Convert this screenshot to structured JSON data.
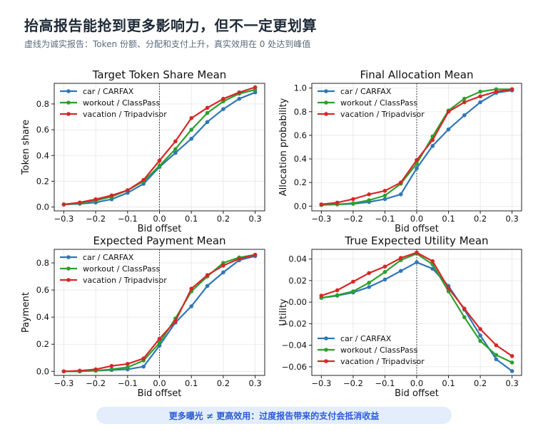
{
  "header": {
    "title": "抬高报告能抢到更多影响力，但不一定更划算",
    "subtitle": "虚线为诚实报告：Token 份额、分配和支付上升，真实效用在 0 处达到峰值"
  },
  "footer": {
    "text": "更多曝光 ≠ 更高效用：过度报告带来的支付会抵消收益"
  },
  "colors": {
    "car": "#2f77b4",
    "workout": "#2ca02c",
    "vacation": "#d62728"
  },
  "chart_data": [
    {
      "type": "line",
      "title": "Target Token Share Mean",
      "xlabel": "Bid offset",
      "ylabel": "Token share",
      "xlim": [
        -0.33,
        0.33
      ],
      "ylim": [
        -0.03,
        0.96
      ],
      "xticks": [
        -0.3,
        -0.2,
        -0.1,
        0.0,
        0.1,
        0.2,
        0.3
      ],
      "xtick_labels": [
        "−0.3",
        "−0.2",
        "−0.1",
        "0.0",
        "0.1",
        "0.2",
        "0.3"
      ],
      "yticks": [
        0.0,
        0.2,
        0.4,
        0.6,
        0.8
      ],
      "ytick_labels": [
        "0.0",
        "0.2",
        "0.4",
        "0.6",
        "0.8"
      ],
      "grid": true,
      "legend_position": "top-left",
      "reference_line_x": 0,
      "x": [
        -0.3,
        -0.25,
        -0.2,
        -0.15,
        -0.1,
        -0.05,
        0.0,
        0.05,
        0.1,
        0.15,
        0.2,
        0.25,
        0.3
      ],
      "series": [
        {
          "name": "car / CARFAX",
          "color": "#2f77b4",
          "values": [
            0.02,
            0.025,
            0.035,
            0.06,
            0.11,
            0.18,
            0.31,
            0.42,
            0.53,
            0.66,
            0.76,
            0.84,
            0.89
          ]
        },
        {
          "name": "workout / ClassPass",
          "color": "#2ca02c",
          "values": [
            0.02,
            0.03,
            0.05,
            0.08,
            0.13,
            0.2,
            0.32,
            0.45,
            0.6,
            0.73,
            0.82,
            0.88,
            0.91
          ]
        },
        {
          "name": "vacation / Tripadvisor",
          "color": "#d62728",
          "values": [
            0.02,
            0.035,
            0.06,
            0.09,
            0.13,
            0.21,
            0.36,
            0.51,
            0.69,
            0.77,
            0.84,
            0.89,
            0.93
          ]
        }
      ]
    },
    {
      "type": "line",
      "title": "Final Allocation Mean",
      "xlabel": "Bid offset",
      "ylabel": "Allocation probability",
      "xlim": [
        -0.33,
        0.33
      ],
      "ylim": [
        -0.04,
        1.04
      ],
      "xticks": [
        -0.3,
        -0.2,
        -0.1,
        0.0,
        0.1,
        0.2,
        0.3
      ],
      "xtick_labels": [
        "−0.3",
        "−0.2",
        "−0.1",
        "0.0",
        "0.1",
        "0.2",
        "0.3"
      ],
      "yticks": [
        0.0,
        0.2,
        0.4,
        0.6,
        0.8,
        1.0
      ],
      "ytick_labels": [
        "0.0",
        "0.2",
        "0.4",
        "0.6",
        "0.8",
        "1.0"
      ],
      "grid": true,
      "legend_position": "top-left",
      "reference_line_x": 0,
      "x": [
        -0.3,
        -0.25,
        -0.2,
        -0.15,
        -0.1,
        -0.05,
        0.0,
        0.05,
        0.1,
        0.15,
        0.2,
        0.25,
        0.3
      ],
      "series": [
        {
          "name": "car / CARFAX",
          "color": "#2f77b4",
          "values": [
            0.01,
            0.015,
            0.02,
            0.035,
            0.06,
            0.1,
            0.32,
            0.51,
            0.65,
            0.77,
            0.88,
            0.96,
            0.98
          ]
        },
        {
          "name": "workout / ClassPass",
          "color": "#2ca02c",
          "values": [
            0.01,
            0.015,
            0.025,
            0.05,
            0.09,
            0.19,
            0.36,
            0.59,
            0.81,
            0.91,
            0.97,
            0.99,
            0.99
          ]
        },
        {
          "name": "vacation / Tripadvisor",
          "color": "#d62728",
          "values": [
            0.015,
            0.03,
            0.06,
            0.1,
            0.13,
            0.2,
            0.39,
            0.56,
            0.8,
            0.88,
            0.93,
            0.97,
            0.99
          ]
        }
      ]
    },
    {
      "type": "line",
      "title": "Expected Payment Mean",
      "xlabel": "Bid offset",
      "ylabel": "Payment",
      "xlim": [
        -0.33,
        0.33
      ],
      "ylim": [
        -0.03,
        0.9
      ],
      "xticks": [
        -0.3,
        -0.2,
        -0.1,
        0.0,
        0.1,
        0.2,
        0.3
      ],
      "xtick_labels": [
        "−0.3",
        "−0.2",
        "−0.1",
        "0.0",
        "0.1",
        "0.2",
        "0.3"
      ],
      "yticks": [
        0.0,
        0.2,
        0.4,
        0.6,
        0.8
      ],
      "ytick_labels": [
        "0.0",
        "0.2",
        "0.4",
        "0.6",
        "0.8"
      ],
      "grid": true,
      "legend_position": "top-left",
      "reference_line_x": 0,
      "x": [
        -0.3,
        -0.25,
        -0.2,
        -0.15,
        -0.1,
        -0.05,
        0.0,
        0.05,
        0.1,
        0.15,
        0.2,
        0.25,
        0.3
      ],
      "series": [
        {
          "name": "car / CARFAX",
          "color": "#2f77b4",
          "values": [
            0.0,
            0.0,
            0.005,
            0.01,
            0.015,
            0.035,
            0.19,
            0.36,
            0.48,
            0.63,
            0.73,
            0.82,
            0.85
          ]
        },
        {
          "name": "workout / ClassPass",
          "color": "#2ca02c",
          "values": [
            0.0,
            0.0,
            0.005,
            0.015,
            0.03,
            0.08,
            0.21,
            0.39,
            0.59,
            0.7,
            0.8,
            0.84,
            0.86
          ]
        },
        {
          "name": "vacation / Tripadvisor",
          "color": "#d62728",
          "values": [
            0.0,
            0.005,
            0.015,
            0.04,
            0.055,
            0.095,
            0.24,
            0.37,
            0.61,
            0.71,
            0.78,
            0.83,
            0.86
          ]
        }
      ]
    },
    {
      "type": "line",
      "title": "True Expected Utility Mean",
      "xlabel": "Bid offset",
      "ylabel": "Utility",
      "xlim": [
        -0.33,
        0.33
      ],
      "ylim": [
        -0.068,
        0.049
      ],
      "xticks": [
        -0.3,
        -0.2,
        -0.1,
        0.0,
        0.1,
        0.2,
        0.3
      ],
      "xtick_labels": [
        "−0.3",
        "−0.2",
        "−0.1",
        "0.0",
        "0.1",
        "0.2",
        "0.3"
      ],
      "yticks": [
        0.04,
        0.02,
        0.0,
        -0.02,
        -0.04,
        -0.06
      ],
      "ytick_labels": [
        "0.04",
        "0.02",
        "0.00",
        "−0.02",
        "−0.04",
        "−0.06"
      ],
      "grid": true,
      "legend_position": "bottom-left",
      "reference_line_x": 0,
      "x": [
        -0.3,
        -0.25,
        -0.2,
        -0.15,
        -0.1,
        -0.05,
        0.0,
        0.05,
        0.1,
        0.15,
        0.2,
        0.25,
        0.3
      ],
      "series": [
        {
          "name": "car / CARFAX",
          "color": "#2f77b4",
          "values": [
            0.004,
            0.006,
            0.009,
            0.014,
            0.021,
            0.029,
            0.037,
            0.031,
            0.015,
            -0.007,
            -0.031,
            -0.053,
            -0.064
          ]
        },
        {
          "name": "workout / ClassPass",
          "color": "#2ca02c",
          "values": [
            0.004,
            0.0065,
            0.01,
            0.018,
            0.028,
            0.039,
            0.045,
            0.035,
            0.01,
            -0.014,
            -0.036,
            -0.049,
            -0.056
          ]
        },
        {
          "name": "vacation / Tripadvisor",
          "color": "#d62728",
          "values": [
            0.006,
            0.011,
            0.019,
            0.027,
            0.033,
            0.041,
            0.046,
            0.038,
            0.013,
            -0.006,
            -0.025,
            -0.04,
            -0.05
          ]
        }
      ]
    }
  ]
}
